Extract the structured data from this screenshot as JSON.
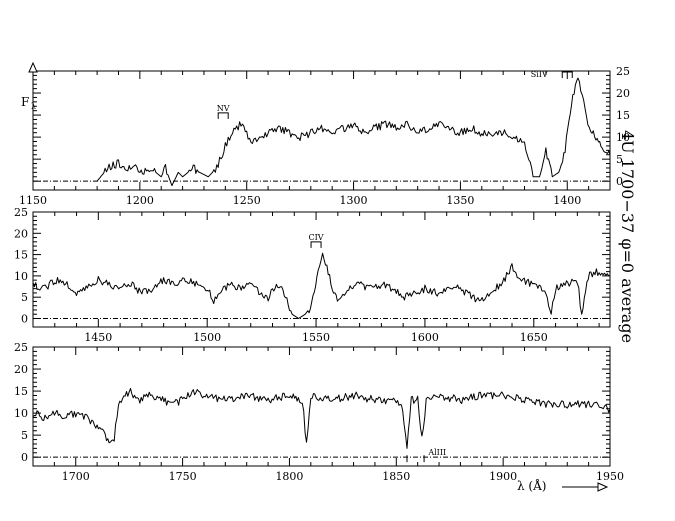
{
  "chart_data": [
    {
      "type": "line",
      "panel": "top",
      "xlim": [
        1150,
        1420
      ],
      "ylim": [
        -2,
        25
      ],
      "xticks": [
        1150,
        1200,
        1250,
        1300,
        1350,
        1400
      ],
      "yticks": [
        0,
        5,
        10,
        15,
        20,
        25
      ],
      "annotations": [
        {
          "text": "NV",
          "x": 1239
        },
        {
          "text": "SiIV",
          "x": 1400
        }
      ],
      "series": [
        {
          "x": [
            1180,
            1185,
            1190,
            1195,
            1198,
            1200,
            1205,
            1210,
            1212,
            1215,
            1218,
            1220,
            1225,
            1228,
            1232,
            1236,
            1240,
            1244,
            1248,
            1252,
            1256,
            1260,
            1265,
            1270,
            1275,
            1280,
            1285,
            1290,
            1295,
            1300,
            1305,
            1310,
            1315,
            1320,
            1325,
            1330,
            1335,
            1340,
            1345,
            1350,
            1355,
            1360,
            1365,
            1370,
            1375,
            1380,
            1384,
            1387,
            1390,
            1393,
            1396,
            1399,
            1402,
            1405,
            1407,
            1409,
            1411,
            1414,
            1417,
            1420
          ],
          "y": [
            0,
            3,
            4,
            3,
            4,
            2,
            3,
            1,
            3,
            -1,
            2,
            1,
            3,
            2,
            1,
            3,
            8,
            12,
            13,
            9,
            10,
            11,
            12,
            11,
            10,
            11,
            12,
            11,
            12,
            13,
            11,
            12,
            13,
            12,
            13,
            11,
            12,
            13,
            12,
            11,
            12,
            11,
            10,
            11,
            10,
            9,
            1,
            1,
            7,
            1,
            2,
            7,
            18,
            23,
            20,
            14,
            12,
            9,
            7,
            6
          ]
        }
      ]
    },
    {
      "type": "line",
      "panel": "middle",
      "xlim": [
        1420,
        1685
      ],
      "ylim": [
        -2,
        25
      ],
      "xticks": [
        1450,
        1500,
        1550,
        1600,
        1650
      ],
      "yticks": [
        0,
        5,
        10,
        15,
        20,
        25
      ],
      "annotations": [
        {
          "text": "CIV",
          "x": 1550
        }
      ],
      "series": [
        {
          "x": [
            1420,
            1425,
            1430,
            1435,
            1440,
            1445,
            1450,
            1455,
            1460,
            1465,
            1470,
            1475,
            1480,
            1485,
            1490,
            1495,
            1500,
            1503,
            1505,
            1510,
            1515,
            1520,
            1525,
            1528,
            1530,
            1533,
            1536,
            1539,
            1542,
            1545,
            1548,
            1551,
            1553,
            1555,
            1558,
            1561,
            1565,
            1570,
            1575,
            1580,
            1585,
            1590,
            1595,
            1600,
            1605,
            1610,
            1615,
            1620,
            1625,
            1630,
            1635,
            1640,
            1643,
            1645,
            1650,
            1655,
            1658,
            1660,
            1665,
            1670,
            1672,
            1675,
            1680,
            1685
          ],
          "y": [
            8,
            7,
            9,
            8,
            6,
            7,
            9,
            8,
            7,
            8,
            6,
            7,
            9,
            8,
            9,
            8,
            7,
            4,
            6,
            8,
            7,
            8,
            6,
            4,
            7,
            8,
            5,
            1,
            0,
            1,
            3,
            12,
            15,
            12,
            6,
            4,
            7,
            8,
            7,
            8,
            7,
            5,
            6,
            7,
            6,
            7,
            7,
            6,
            4,
            6,
            8,
            12,
            10,
            9,
            8,
            7,
            1,
            7,
            8,
            9,
            1,
            10,
            11,
            10
          ]
        }
      ]
    },
    {
      "type": "line",
      "panel": "bottom",
      "xlim": [
        1680,
        1950
      ],
      "ylim": [
        -2,
        25
      ],
      "xticks": [
        1700,
        1750,
        1800,
        1850,
        1900,
        1950
      ],
      "yticks": [
        0,
        5,
        10,
        15,
        20,
        25
      ],
      "annotations": [
        {
          "text": "AlIII",
          "x": 1860
        }
      ],
      "series": [
        {
          "x": [
            1680,
            1685,
            1690,
            1695,
            1700,
            1705,
            1710,
            1715,
            1718,
            1720,
            1725,
            1730,
            1735,
            1740,
            1745,
            1750,
            1755,
            1760,
            1770,
            1780,
            1790,
            1800,
            1806,
            1808,
            1810,
            1820,
            1830,
            1840,
            1850,
            1853,
            1855,
            1857,
            1860,
            1862,
            1864,
            1870,
            1880,
            1890,
            1900,
            1910,
            1920,
            1930,
            1940,
            1950
          ],
          "y": [
            10,
            9,
            10,
            9,
            10,
            9,
            7,
            4,
            4,
            12,
            15,
            13,
            14,
            13,
            12,
            13,
            15,
            14,
            13,
            14,
            13,
            14,
            13,
            3,
            14,
            13,
            14,
            13,
            13,
            11,
            2,
            13,
            13,
            4,
            13,
            14,
            13,
            14,
            14,
            13,
            12,
            12,
            12,
            11
          ]
        }
      ]
    }
  ],
  "labels": {
    "flux": "F",
    "flux_sub": "λ",
    "xlabel": "λ (Å)",
    "side_title": "4U 1700−37   φ=0 average"
  }
}
